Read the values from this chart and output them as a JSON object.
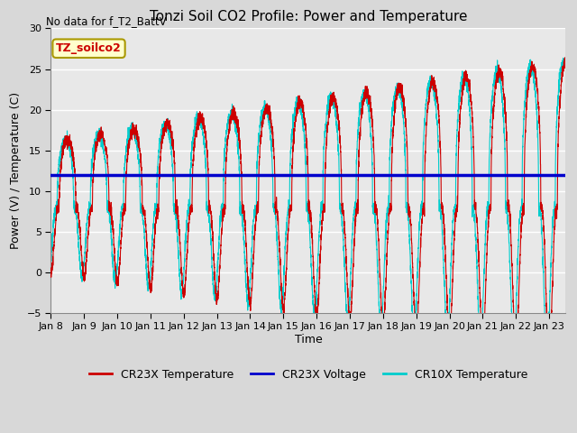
{
  "title": "Tonzi Soil CO2 Profile: Power and Temperature",
  "no_data_label": "No data for f_T2_BattV",
  "ylabel": "Power (V) / Temperature (C)",
  "xlabel": "Time",
  "ylim": [
    -5,
    30
  ],
  "yticks": [
    -5,
    0,
    5,
    10,
    15,
    20,
    25,
    30
  ],
  "xtick_labels": [
    "Jan 8",
    "Jan 9",
    "Jan 10",
    "Jan 11",
    "Jan 12",
    "Jan 13",
    "Jan 14",
    "Jan 15",
    "Jan 16",
    "Jan 17",
    "Jan 18",
    "Jan 19",
    "Jan 20",
    "Jan 21",
    "Jan 22",
    "Jan 23"
  ],
  "voltage_value": 12.0,
  "voltage_color": "#0000cc",
  "cr23x_color": "#cc0000",
  "cr10x_color": "#00cccc",
  "legend_labels": [
    "CR23X Temperature",
    "CR23X Voltage",
    "CR10X Temperature"
  ],
  "annotation_box_color": "#ffffcc",
  "annotation_box_text": "TZ_soilco2",
  "annotation_box_edge": "#aa9900",
  "plot_bg_color": "#e8e8e8",
  "grid_color": "#ffffff",
  "fig_bg_color": "#d8d8d8",
  "title_fontsize": 11,
  "label_fontsize": 9,
  "tick_fontsize": 8
}
